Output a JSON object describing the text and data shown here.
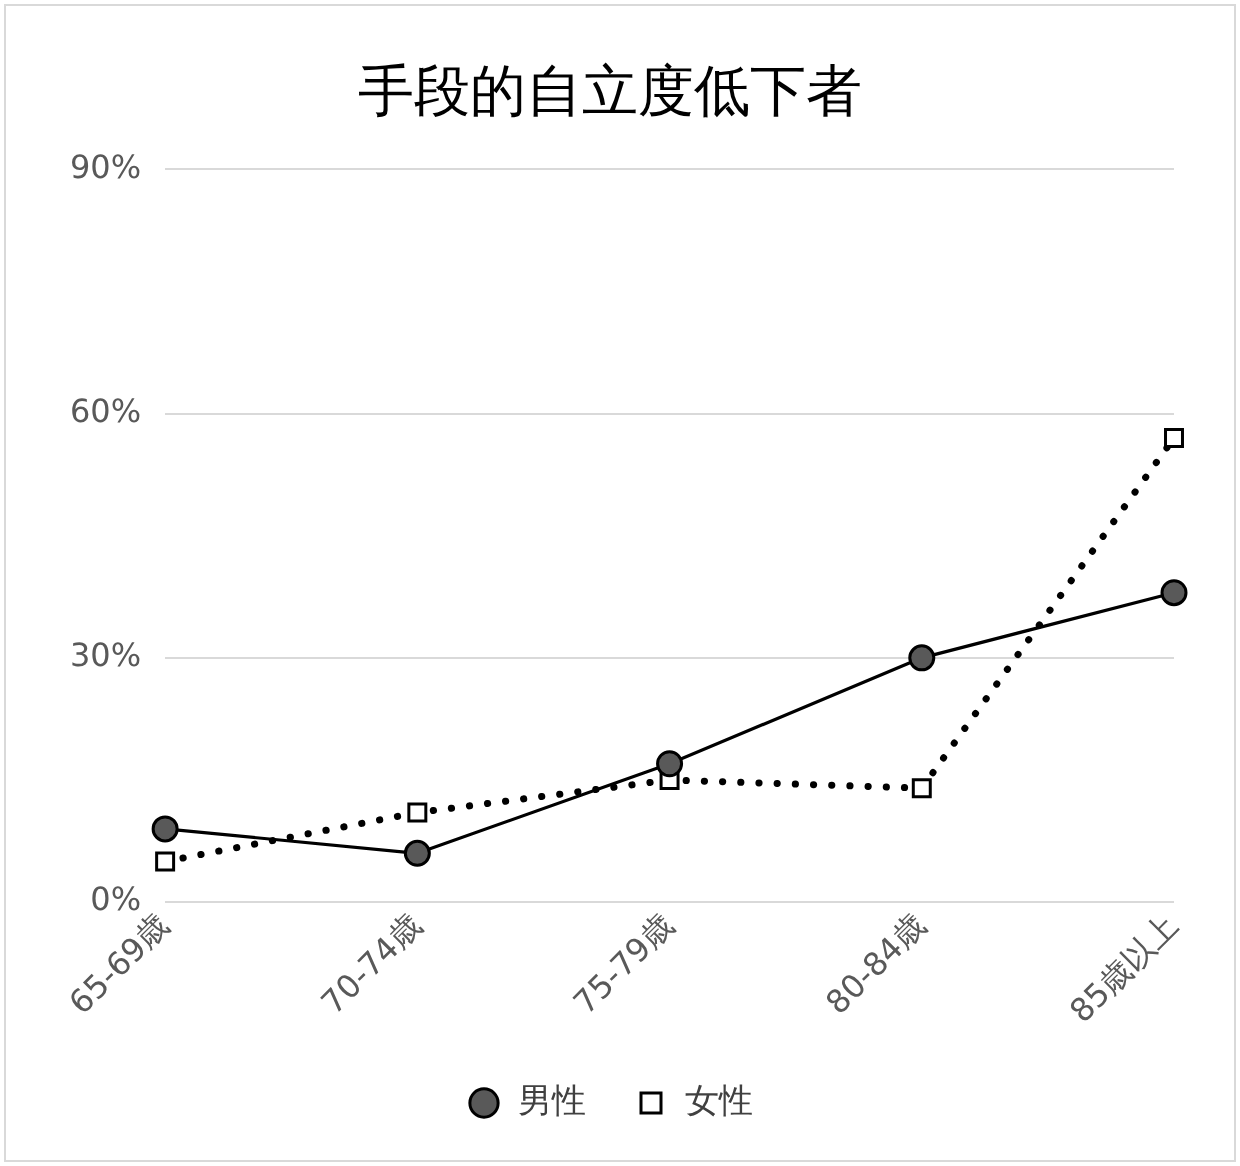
{
  "chart_data": {
    "type": "line",
    "title": "手段的自立度低下者",
    "categories": [
      "65-69歳",
      "70-74歳",
      "75-79歳",
      "80-84歳",
      "85歳以上"
    ],
    "series": [
      {
        "name": "男性",
        "color": "#595959",
        "values": [
          9,
          6,
          17,
          30,
          38
        ],
        "marker": "circle",
        "line_style": "solid"
      },
      {
        "name": "女性",
        "color": "#ffffff",
        "values": [
          5,
          11,
          15,
          14,
          57
        ],
        "marker": "square",
        "line_style": "dotted"
      }
    ],
    "ylim": [
      0,
      90
    ],
    "yticks": [
      {
        "value": 0,
        "label": "0%"
      },
      {
        "value": 30,
        "label": "30%"
      },
      {
        "value": 60,
        "label": "60%"
      },
      {
        "value": 90,
        "label": "90%"
      }
    ],
    "grid": "y",
    "legend": "bottom"
  }
}
